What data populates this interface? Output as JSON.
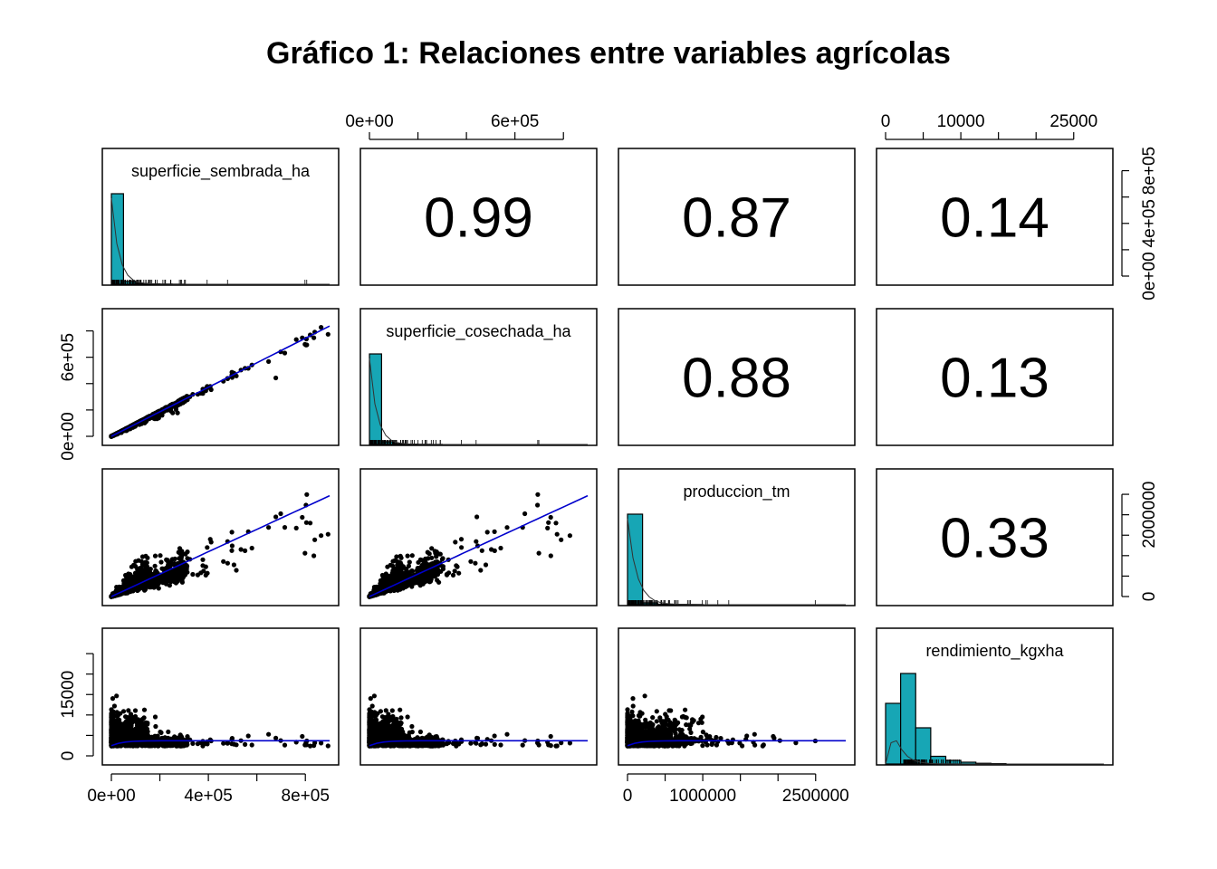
{
  "chart_data": {
    "type": "scatter-matrix",
    "title": "Gráfico 1: Relaciones entre variables agrícolas",
    "variables": [
      {
        "name": "superficie_sembrada_ha",
        "range": [
          0,
          900000
        ],
        "ticks": [
          0,
          200000,
          400000,
          600000,
          800000
        ],
        "tick_labels": [
          "0e+00",
          "4e+05",
          "8e+05"
        ],
        "tick_label_values": [
          0,
          400000,
          800000
        ]
      },
      {
        "name": "superficie_cosechada_ha",
        "range": [
          0,
          900000
        ],
        "ticks": [
          0,
          200000,
          400000,
          600000,
          800000
        ],
        "tick_labels": [
          "0e+00",
          "6e+05"
        ],
        "tick_label_values": [
          0,
          600000
        ]
      },
      {
        "name": "produccion_tm",
        "range": [
          0,
          2900000
        ],
        "ticks": [
          0,
          500000,
          1000000,
          1500000,
          2000000,
          2500000
        ],
        "tick_labels": [
          "0",
          "1000000",
          "2500000"
        ],
        "tick_label_values": [
          0,
          1000000,
          2500000
        ],
        "y_tick_labels": [
          "0",
          "2000000"
        ],
        "y_tick_label_values": [
          0,
          2000000
        ]
      },
      {
        "name": "rendimiento_kgxha",
        "range": [
          0,
          29000
        ],
        "ticks": [
          0,
          5000,
          10000,
          15000,
          20000,
          25000
        ],
        "tick_labels": [
          "0",
          "10000",
          "25000"
        ],
        "tick_label_values": [
          0,
          10000,
          25000
        ],
        "y_tick_labels": [
          "0",
          "15000"
        ],
        "y_tick_label_values": [
          0,
          15000
        ]
      }
    ],
    "correlations": [
      {
        "row": 1,
        "col": 2,
        "value": "0.99"
      },
      {
        "row": 1,
        "col": 3,
        "value": "0.87"
      },
      {
        "row": 1,
        "col": 4,
        "value": "0.14"
      },
      {
        "row": 2,
        "col": 3,
        "value": "0.88"
      },
      {
        "row": 2,
        "col": 4,
        "value": "0.13"
      },
      {
        "row": 3,
        "col": 4,
        "value": "0.33"
      }
    ],
    "histograms": [
      {
        "variable": "superficie_sembrada_ha",
        "bin_width": 50000,
        "relative_heights": [
          1.0,
          0.03,
          0.008,
          0.004,
          0.002,
          0.001
        ]
      },
      {
        "variable": "superficie_cosechada_ha",
        "bin_width": 50000,
        "relative_heights": [
          1.0,
          0.03,
          0.008,
          0.004,
          0.002,
          0.001
        ]
      },
      {
        "variable": "produccion_tm",
        "bin_width": 200000,
        "relative_heights": [
          1.0,
          0.02,
          0.006,
          0.003,
          0.002
        ]
      },
      {
        "variable": "rendimiento_kgxha",
        "bin_width": 2000,
        "relative_heights": [
          0.67,
          1.0,
          0.4,
          0.085,
          0.04,
          0.02,
          0.008,
          0.004
        ]
      }
    ],
    "colors": {
      "histogram_fill": "#17A6B5",
      "fit_line": "#0000CC",
      "points": "#000000"
    }
  }
}
